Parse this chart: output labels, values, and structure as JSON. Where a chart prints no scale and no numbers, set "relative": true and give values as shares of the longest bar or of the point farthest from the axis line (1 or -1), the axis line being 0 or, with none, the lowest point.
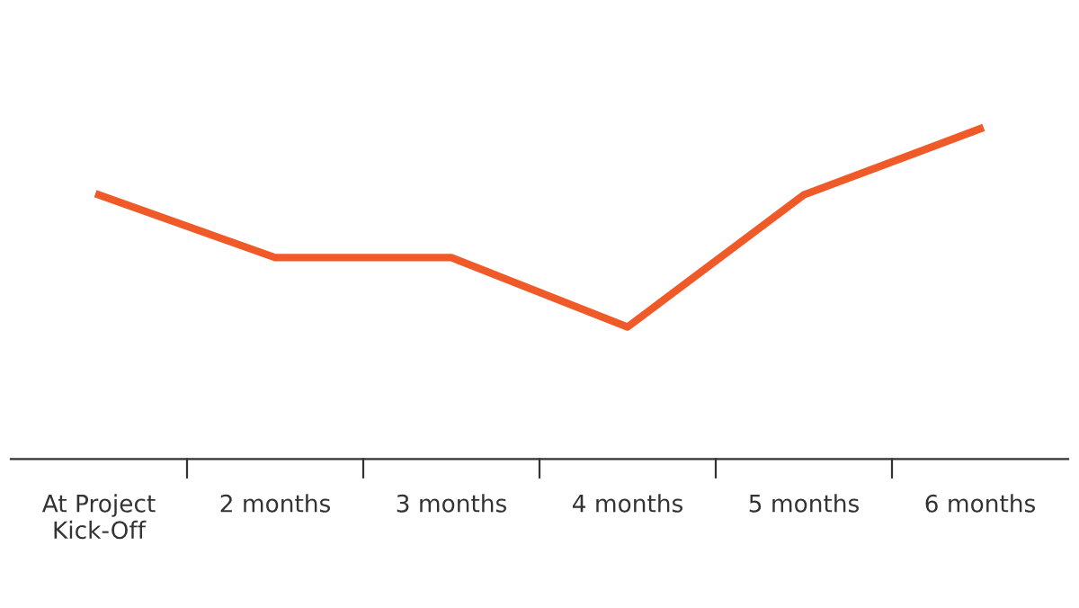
{
  "chart_data": {
    "type": "line",
    "relative": true,
    "categories": [
      "At Project Kick-Off",
      "2 months",
      "3 months",
      "4 months",
      "5 months",
      "6 months"
    ],
    "series": [
      {
        "color": "#f05a28",
        "values": [
          0.8,
          0.61,
          0.61,
          0.4,
          0.8,
          1.0
        ]
      }
    ],
    "grid": false,
    "legend": false,
    "marker": "none",
    "line_style": "solid",
    "tick_labels": "x"
  }
}
